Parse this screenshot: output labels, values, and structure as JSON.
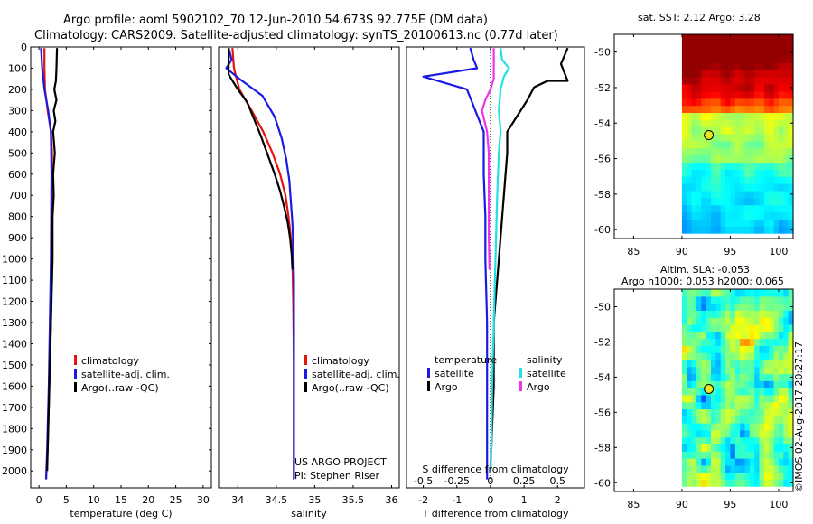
{
  "title_line1": "Argo profile: aoml 5902102_70 12-Jun-2010 54.673S 92.775E (DM data)",
  "title_line2": "Climatology: CARS2009. Satellite-adjusted climatology: synTS_20100613.nc (0.77d later)",
  "sst_title": "sat. SST: 2.12 Argo: 3.28",
  "sla_title_line1": "Altim. SLA: -0.053",
  "sla_title_line2": "Argo h1000: 0.053 h2000: 0.065",
  "project_line1": "US ARGO PROJECT",
  "project_line2": "PI: Stephen Riser",
  "timestamp": "©IMOS 02-Aug-2017 20:27:17",
  "colors": {
    "climatology": "#e8120c",
    "satellite": "#1a1ae6",
    "argo": "#000000",
    "sat_salinity": "#22e0e8",
    "argo_salinity": "#ee33ee"
  },
  "chart_data": [
    {
      "type": "line",
      "name": "temperature",
      "xlabel": "temperature (deg C)",
      "ylabel": "",
      "xlim": [
        -1.5,
        31.5
      ],
      "ylim": [
        2080,
        0
      ],
      "xticks": [
        0,
        5,
        10,
        15,
        20,
        25,
        30
      ],
      "yticks": [
        0,
        100,
        200,
        300,
        400,
        500,
        600,
        700,
        800,
        900,
        1000,
        1100,
        1200,
        1300,
        1400,
        1500,
        1600,
        1700,
        1800,
        1900,
        2000
      ],
      "legend": [
        "climatology",
        "satellite-adj. clim.",
        "Argo(..raw -QC)"
      ],
      "series": [
        {
          "name": "climatology",
          "color_key": "climatology",
          "points": [
            [
              1.0,
              5
            ],
            [
              1.0,
              100
            ],
            [
              1.1,
              200
            ],
            [
              1.6,
              300
            ],
            [
              2.2,
              400
            ],
            [
              2.4,
              500
            ],
            [
              2.4,
              700
            ],
            [
              2.35,
              1000
            ],
            [
              2.2,
              1300
            ],
            [
              1.9,
              1600
            ],
            [
              1.6,
              1900
            ],
            [
              1.3,
              2040
            ]
          ]
        },
        {
          "name": "satellite-adj. clim.",
          "color_key": "satellite",
          "points": [
            [
              0.4,
              5
            ],
            [
              0.6,
              100
            ],
            [
              1.0,
              200
            ],
            [
              1.7,
              300
            ],
            [
              2.2,
              400
            ],
            [
              2.3,
              600
            ],
            [
              2.2,
              1000
            ],
            [
              2.0,
              1300
            ],
            [
              1.8,
              1600
            ],
            [
              1.5,
              1900
            ],
            [
              1.3,
              2040
            ]
          ]
        },
        {
          "name": "Argo(..raw -QC)",
          "color_key": "argo",
          "points": [
            [
              3.3,
              5
            ],
            [
              3.2,
              100
            ],
            [
              3.1,
              160
            ],
            [
              2.8,
              200
            ],
            [
              3.2,
              250
            ],
            [
              2.7,
              300
            ],
            [
              3.0,
              350
            ],
            [
              2.6,
              400
            ],
            [
              2.9,
              500
            ],
            [
              2.6,
              600
            ],
            [
              2.7,
              700
            ],
            [
              2.5,
              800
            ],
            [
              2.5,
              1000
            ],
            [
              2.3,
              1200
            ],
            [
              2.1,
              1400
            ],
            [
              1.9,
              1600
            ],
            [
              1.7,
              1800
            ],
            [
              1.5,
              2000
            ]
          ]
        }
      ]
    },
    {
      "type": "line",
      "name": "salinity",
      "xlabel": "salinity",
      "xlim": [
        33.75,
        36.1
      ],
      "ylim": [
        2080,
        0
      ],
      "xticks": [
        34,
        34.5,
        35,
        35.5,
        36
      ],
      "xticklabels": [
        "34",
        "34.5",
        "35",
        "35.5",
        "36"
      ],
      "legend": [
        "climatology",
        "satellite-adj. clim.",
        "Argo(..raw -QC)"
      ],
      "series": [
        {
          "name": "climatology",
          "color_key": "climatology",
          "points": [
            [
              33.93,
              5
            ],
            [
              33.95,
              100
            ],
            [
              34.02,
              200
            ],
            [
              34.18,
              300
            ],
            [
              34.33,
              400
            ],
            [
              34.45,
              500
            ],
            [
              34.55,
              600
            ],
            [
              34.62,
              700
            ],
            [
              34.66,
              800
            ],
            [
              34.69,
              900
            ],
            [
              34.71,
              1000
            ],
            [
              34.72,
              1200
            ],
            [
              34.73,
              1500
            ],
            [
              34.73,
              2040
            ]
          ]
        },
        {
          "name": "satellite-adj. clim.",
          "color_key": "satellite",
          "points": [
            [
              33.88,
              5
            ],
            [
              33.92,
              60
            ],
            [
              33.85,
              100
            ],
            [
              34.02,
              150
            ],
            [
              34.32,
              230
            ],
            [
              34.48,
              330
            ],
            [
              34.57,
              430
            ],
            [
              34.63,
              530
            ],
            [
              34.67,
              630
            ],
            [
              34.69,
              730
            ],
            [
              34.71,
              830
            ],
            [
              34.72,
              930
            ],
            [
              34.73,
              1100
            ],
            [
              34.73,
              1500
            ],
            [
              34.73,
              2040
            ]
          ]
        },
        {
          "name": "Argo(..raw -QC)",
          "color_key": "argo",
          "points": [
            [
              33.88,
              5
            ],
            [
              33.88,
              130
            ],
            [
              34.0,
              200
            ],
            [
              34.12,
              260
            ],
            [
              34.2,
              330
            ],
            [
              34.3,
              420
            ],
            [
              34.38,
              500
            ],
            [
              34.48,
              600
            ],
            [
              34.55,
              680
            ],
            [
              34.6,
              750
            ],
            [
              34.65,
              830
            ],
            [
              34.68,
              900
            ],
            [
              34.7,
              980
            ],
            [
              34.71,
              1050
            ]
          ]
        }
      ]
    },
    {
      "type": "line",
      "name": "difference",
      "xlabel": "T difference from climatology",
      "xlabel_top": "S difference from climatology",
      "xlim": [
        -2.5,
        2.8
      ],
      "ylim": [
        2080,
        0
      ],
      "xticks": [
        -2,
        -1,
        0,
        1,
        2
      ],
      "s_xticks": [
        -0.5,
        -0.25,
        0,
        0.25,
        0.5
      ],
      "s_xticklabels": [
        "-0.5",
        "-0.25",
        "0",
        "0.25",
        "0.5"
      ],
      "legend_temperature_title": "temperature",
      "legend_salinity_title": "salinity",
      "legend_satellite": "satellite",
      "legend_argo": "Argo",
      "series": [
        {
          "name": "temperature satellite",
          "color_key": "satellite",
          "points": [
            [
              -0.6,
              5
            ],
            [
              -0.5,
              60
            ],
            [
              -0.4,
              100
            ],
            [
              -2.0,
              140
            ],
            [
              -0.7,
              200
            ],
            [
              -0.45,
              300
            ],
            [
              -0.2,
              400
            ],
            [
              -0.2,
              600
            ],
            [
              -0.15,
              800
            ],
            [
              -0.15,
              1000
            ],
            [
              -0.1,
              1300
            ],
            [
              -0.1,
              1600
            ],
            [
              -0.1,
              2040
            ]
          ]
        },
        {
          "name": "temperature Argo",
          "color_key": "argo",
          "points": [
            [
              2.3,
              5
            ],
            [
              2.1,
              80
            ],
            [
              2.3,
              160
            ],
            [
              1.7,
              160
            ],
            [
              1.3,
              190
            ],
            [
              1.1,
              250
            ],
            [
              0.9,
              300
            ],
            [
              0.7,
              350
            ],
            [
              0.5,
              400
            ],
            [
              0.5,
              500
            ],
            [
              0.4,
              700
            ],
            [
              0.3,
              900
            ],
            [
              0.2,
              1100
            ],
            [
              0.1,
              1300
            ],
            [
              0.1,
              1600
            ],
            [
              0.05,
              1800
            ],
            [
              0.0,
              2000
            ]
          ]
        },
        {
          "name": "salinity satellite",
          "color_key": "sat_salinity",
          "points": [
            [
              0.3,
              5
            ],
            [
              0.35,
              60
            ],
            [
              0.55,
              100
            ],
            [
              0.4,
              140
            ],
            [
              0.3,
              200
            ],
            [
              0.25,
              300
            ],
            [
              0.3,
              400
            ],
            [
              0.25,
              500
            ],
            [
              0.2,
              700
            ],
            [
              0.15,
              1000
            ],
            [
              0.1,
              1300
            ],
            [
              0.05,
              1600
            ],
            [
              0.03,
              1900
            ],
            [
              0.0,
              2000
            ]
          ]
        },
        {
          "name": "salinity Argo",
          "color_key": "argo_salinity",
          "points": [
            [
              0.1,
              5
            ],
            [
              0.1,
              150
            ],
            [
              0.0,
              200
            ],
            [
              -0.15,
              250
            ],
            [
              -0.25,
              300
            ],
            [
              -0.1,
              400
            ],
            [
              -0.05,
              500
            ],
            [
              -0.05,
              700
            ],
            [
              -0.05,
              900
            ],
            [
              -0.03,
              1050
            ]
          ]
        }
      ]
    },
    {
      "type": "heatmap",
      "name": "sst_map",
      "title": "sat. SST: 2.12 Argo: 3.28",
      "xlim": [
        83,
        101.5
      ],
      "ylim": [
        -60.5,
        -49
      ],
      "xticks": [
        85,
        90,
        95,
        100
      ],
      "yticks": [
        -50,
        -52,
        -54,
        -56,
        -58,
        -60
      ],
      "yticklabels": [
        "-50",
        "-52",
        "-54",
        "-56",
        "-58",
        "-60"
      ],
      "data_extent": {
        "lon": [
          90,
          101.5
        ],
        "lat": [
          -60.2,
          -49
        ]
      },
      "float_position": [
        92.775,
        -54.673
      ]
    },
    {
      "type": "heatmap",
      "name": "sla_map",
      "title": "Altim. SLA: -0.053",
      "xlim": [
        83,
        101.5
      ],
      "ylim": [
        -60.5,
        -49
      ],
      "xticks": [
        85,
        90,
        95,
        100
      ],
      "yticks": [
        -50,
        -52,
        -54,
        -56,
        -58,
        -60
      ],
      "yticklabels": [
        "-50",
        "-52",
        "-54",
        "-56",
        "-58",
        "-60"
      ],
      "data_extent": {
        "lon": [
          90,
          101.5
        ],
        "lat": [
          -60.2,
          -49
        ]
      },
      "float_position": [
        92.775,
        -54.673
      ]
    }
  ]
}
